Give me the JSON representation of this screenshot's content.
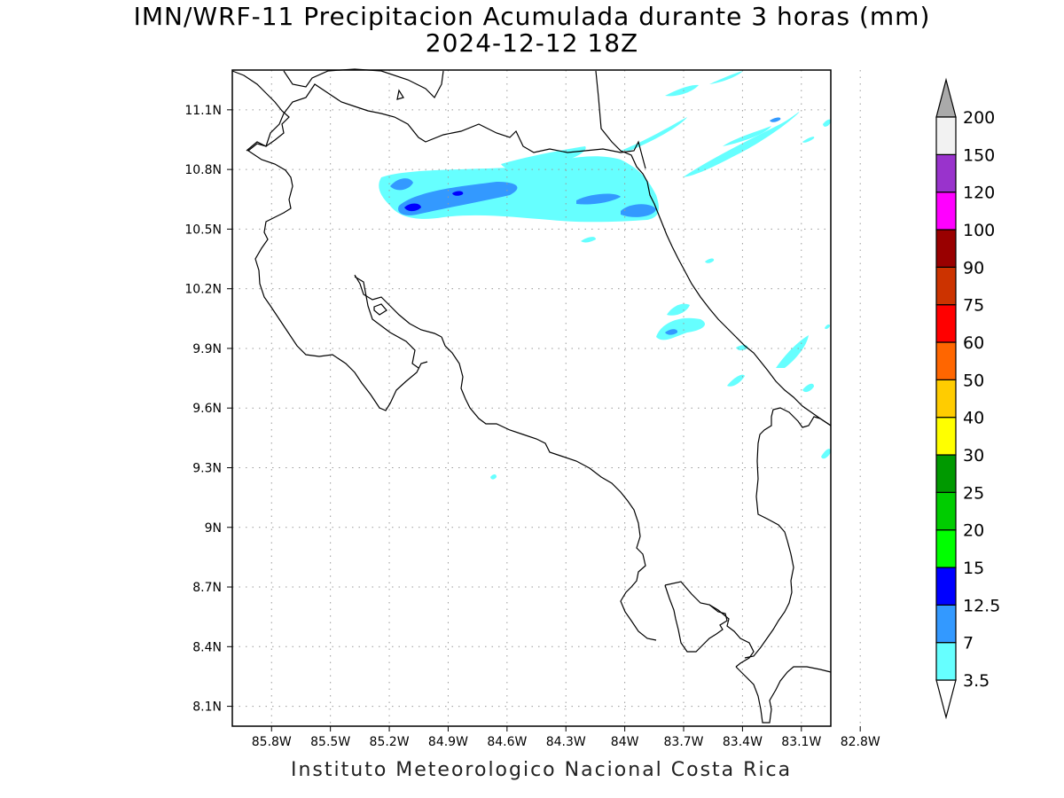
{
  "title": {
    "line1": "IMN/WRF-11 Precipitacion Acumulada durante 3 horas (mm)",
    "line2": "2024-12-12 18Z"
  },
  "footer": "Instituto Meteorologico Nacional Costa Rica",
  "map": {
    "lon_range": [
      -86.0,
      -82.95
    ],
    "lat_range": [
      8.0,
      11.3
    ],
    "lat_ticks": [
      "8.1N",
      "8.4N",
      "8.7N",
      "9N",
      "9.3N",
      "9.6N",
      "9.9N",
      "10.2N",
      "10.5N",
      "10.8N",
      "11.1N"
    ],
    "lon_ticks": [
      "85.8W",
      "85.5W",
      "85.2W",
      "84.9W",
      "84.6W",
      "84.3W",
      "84W",
      "83.7W",
      "83.4W",
      "83.1W",
      "82.8W"
    ],
    "grid": true,
    "colors": {
      "coast": "#000000",
      "grid": "#9a9a9a"
    }
  },
  "colorbar": {
    "labels": [
      "3.5",
      "7",
      "12.5",
      "15",
      "20",
      "25",
      "30",
      "40",
      "50",
      "60",
      "75",
      "90",
      "100",
      "120",
      "150",
      "200"
    ],
    "colors": [
      "#ffffff",
      "#66ffff",
      "#3399ff",
      "#0000ff",
      "#00ff00",
      "#00cc00",
      "#009900",
      "#ffff00",
      "#ffcc00",
      "#ff6600",
      "#ff0000",
      "#cc3300",
      "#990000",
      "#ff00ff",
      "#9933cc",
      "#f2f2f2"
    ],
    "max_arrow_color": "#aaaaaa",
    "min_arrow_color": "#ffffff"
  }
}
